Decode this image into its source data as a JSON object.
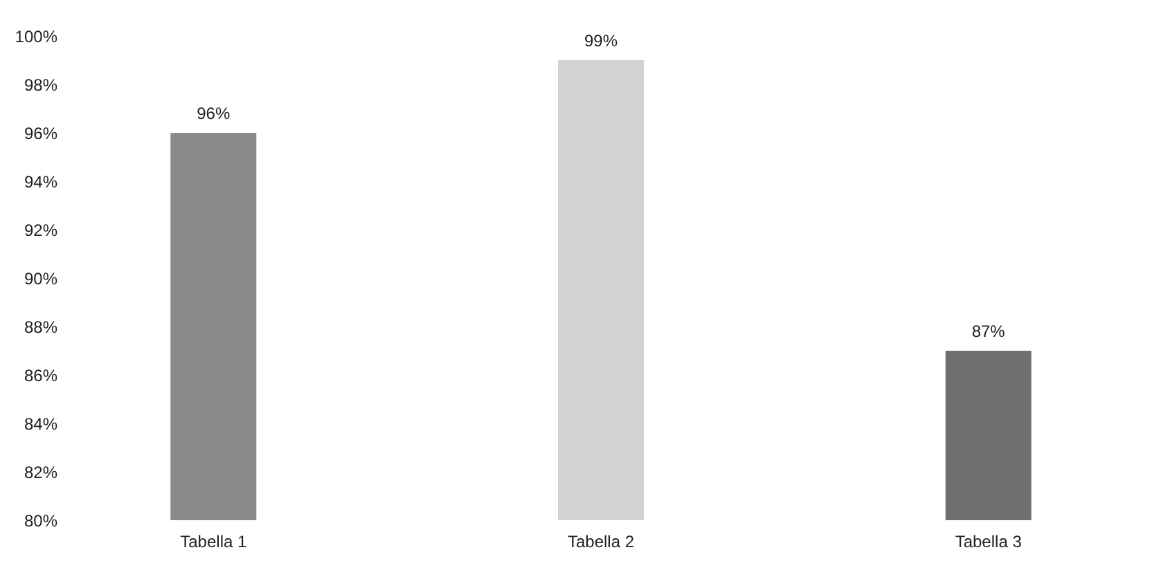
{
  "chart_data": {
    "type": "bar",
    "categories": [
      "Tabella 1",
      "Tabella 2",
      "Tabella 3"
    ],
    "values": [
      96,
      99,
      87
    ],
    "colors": [
      "#8a8a8a",
      "#d2d2d2",
      "#6f6f6f"
    ],
    "value_labels": [
      "96%",
      "99%",
      "87%"
    ],
    "ylim": [
      80,
      100
    ],
    "yticks": [
      {
        "value": 80,
        "label": "80%"
      },
      {
        "value": 82,
        "label": "82%"
      },
      {
        "value": 84,
        "label": "84%"
      },
      {
        "value": 86,
        "label": "86%"
      },
      {
        "value": 88,
        "label": "88%"
      },
      {
        "value": 90,
        "label": "90%"
      },
      {
        "value": 92,
        "label": "92%"
      },
      {
        "value": 94,
        "label": "94%"
      },
      {
        "value": 96,
        "label": "96%"
      },
      {
        "value": 98,
        "label": "98%"
      },
      {
        "value": 100,
        "label": "100%"
      }
    ],
    "grid": false
  }
}
